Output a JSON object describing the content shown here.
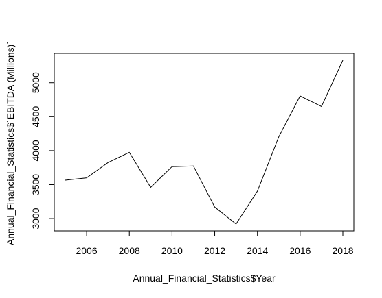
{
  "chart_data": {
    "type": "line",
    "title": "",
    "xlabel": "Annual_Financial_Statistics$Year",
    "ylabel": "Annual_Financial_Statistics$`EBITDA (Millions)`",
    "xlim": [
      2005,
      2018
    ],
    "ylim": [
      2920,
      5330
    ],
    "x_ticks": [
      2006,
      2008,
      2010,
      2012,
      2014,
      2016,
      2018
    ],
    "y_ticks": [
      3000,
      3500,
      4000,
      4500,
      5000
    ],
    "grid": false,
    "legend": "none",
    "line_color": "#000000",
    "series": [
      {
        "x": [
          2005,
          2006,
          2007,
          2008,
          2009,
          2010,
          2011,
          2012,
          2013,
          2014,
          2015,
          2016,
          2017,
          2018
        ],
        "y": [
          3565,
          3600,
          3825,
          3975,
          3460,
          3765,
          3775,
          3170,
          2920,
          3405,
          4205,
          4805,
          4650,
          5330
        ]
      }
    ]
  }
}
